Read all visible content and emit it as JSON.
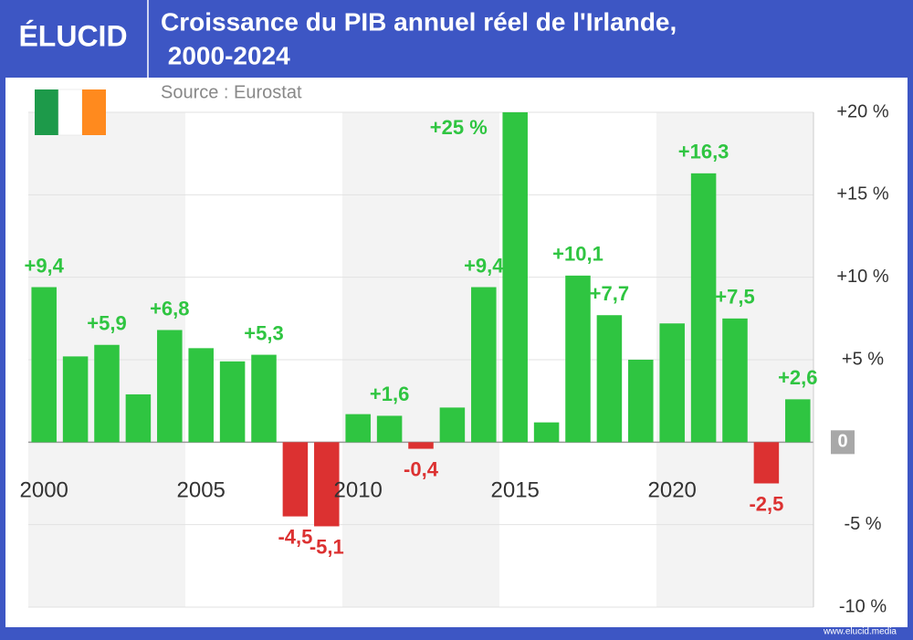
{
  "brand": "ÉLUCID",
  "footer": "www.elucid.media",
  "chart_data": {
    "type": "bar",
    "title": "Croissance du PIB annuel réel de l'Irlande,",
    "subtitle": " 2000-2024",
    "source": "Source : Eurostat",
    "categories": [
      "2000",
      null,
      null,
      null,
      null,
      "2005",
      null,
      null,
      null,
      null,
      "2010",
      null,
      null,
      null,
      null,
      "2015",
      null,
      null,
      null,
      null,
      "2020",
      null,
      null,
      null,
      null
    ],
    "values": [
      9.4,
      5.2,
      5.9,
      2.9,
      6.8,
      5.7,
      4.9,
      5.3,
      -4.5,
      -5.1,
      1.7,
      1.6,
      -0.4,
      2.1,
      9.4,
      25,
      1.2,
      10.1,
      7.7,
      5.0,
      7.2,
      16.3,
      7.5,
      -2.5,
      2.6
    ],
    "value_labels": [
      "+9,4",
      null,
      "+5,9",
      null,
      "+6,8",
      null,
      null,
      "+5,3",
      "-4,5",
      "-5,1",
      null,
      "+1,6",
      "-0,4",
      null,
      "+9,4",
      "+25 %",
      null,
      "+10,1",
      "+7,7",
      null,
      null,
      "+16,3",
      "+7,5",
      "-2,5",
      "+2,6"
    ],
    "color": "#2fc541",
    "negative_color": "#dc3131",
    "ylim": [
      -10,
      20
    ],
    "yticks": [
      {
        "value": -10,
        "label": "-10 %"
      },
      {
        "value": -5,
        "label": "-5 %"
      },
      0,
      {
        "value": 5,
        "label": "+5 %"
      },
      {
        "value": 10,
        "label": "+10 %"
      },
      {
        "value": 15,
        "label": "+15 %"
      },
      {
        "value": 20,
        "label": "+20 %"
      }
    ],
    "grid": true
  }
}
